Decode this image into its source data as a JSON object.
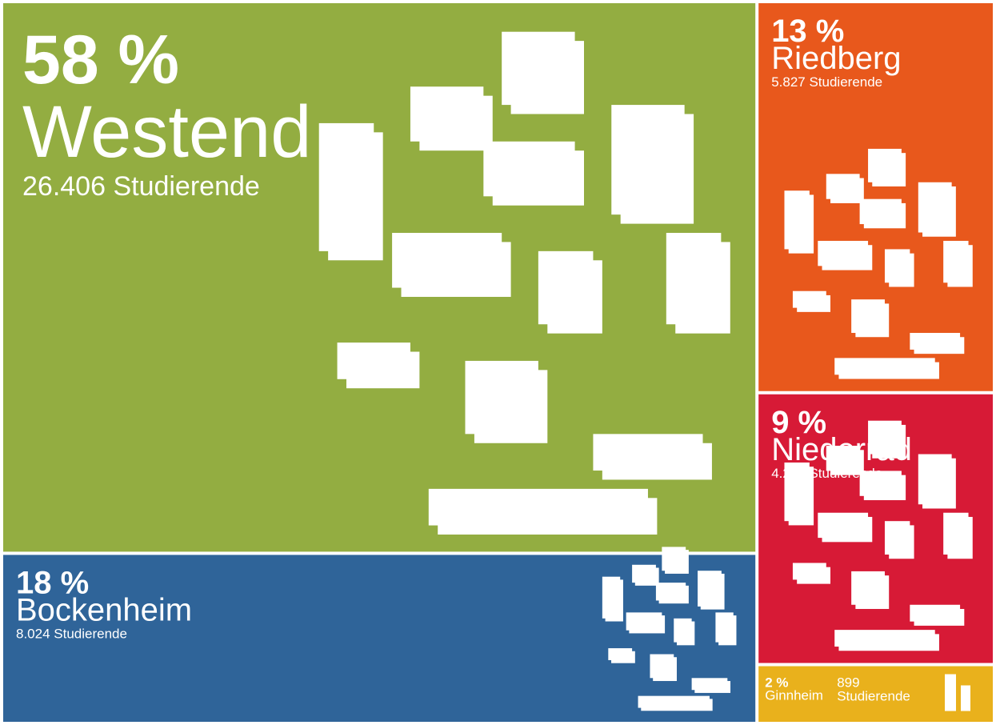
{
  "chart_data": {
    "type": "treemap",
    "categories": [
      "Westend",
      "Bockenheim",
      "Riedberg",
      "Niederrad",
      "Ginnheim"
    ],
    "values": [
      58,
      18,
      13,
      9,
      2
    ],
    "value_labels": [
      "58 %",
      "18 %",
      "13 %",
      "9 %",
      "2 %"
    ],
    "details": [
      "26.406 Studierende",
      "8.024 Studierende",
      "5.827 Studierende",
      "4.213 Studierende",
      "899 Studierende"
    ],
    "colors": [
      "#93ad41",
      "#2f6499",
      "#e8581c",
      "#d71a36",
      "#e9b11c"
    ]
  }
}
